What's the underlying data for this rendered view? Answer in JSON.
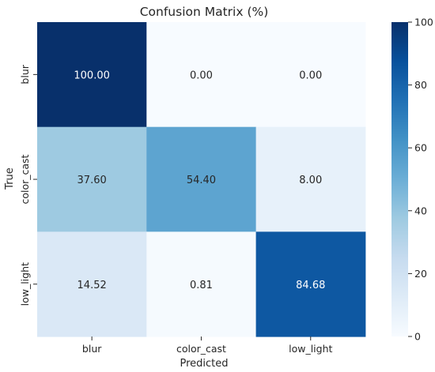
{
  "chart_data": {
    "type": "heatmap",
    "title": "Confusion Matrix (%)",
    "xlabel": "Predicted",
    "ylabel": "True",
    "x_categories": [
      "blur",
      "color_cast",
      "low_light"
    ],
    "y_categories": [
      "blur",
      "color_cast",
      "low_light"
    ],
    "values": [
      [
        100.0,
        0.0,
        0.0
      ],
      [
        37.6,
        54.4,
        8.0
      ],
      [
        14.52,
        0.81,
        84.68
      ]
    ],
    "value_format_decimals": 2,
    "colormap": "Blues",
    "vmin": 0,
    "vmax": 100,
    "colorbar_ticks": [
      0,
      20,
      40,
      60,
      80,
      100
    ],
    "annotation_text_dark": "#262626",
    "annotation_text_light": "#ffffff"
  }
}
